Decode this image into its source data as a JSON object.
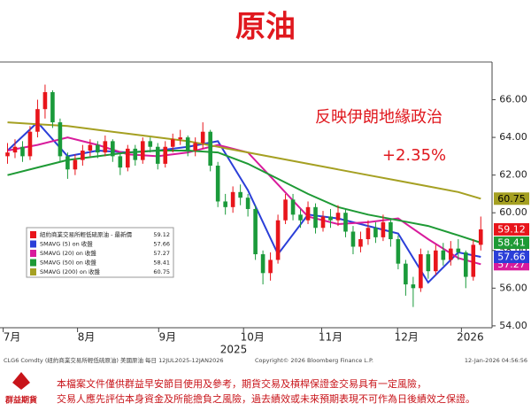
{
  "chart_data": {
    "type": "candlestick",
    "title": "原油",
    "annotation": "反映伊朗地緣政治",
    "annotation_change": "+2.35%",
    "x": [
      0,
      1,
      2,
      3,
      4,
      5,
      6,
      7,
      8,
      9,
      10,
      11,
      12,
      13,
      14,
      15,
      16,
      17,
      18,
      19,
      20,
      21,
      22,
      23,
      24,
      25,
      26,
      27,
      28,
      29,
      30,
      31,
      32,
      33,
      34,
      35,
      36,
      37,
      38,
      39,
      40,
      41,
      42,
      43,
      44,
      45,
      46,
      47,
      48,
      49,
      50,
      51,
      52,
      53,
      54,
      55,
      56,
      57,
      58,
      59,
      60,
      61,
      62,
      63
    ],
    "open": [
      63.0,
      63.2,
      63.5,
      63.0,
      64.3,
      65.5,
      66.4,
      64.8,
      63.0,
      62.3,
      62.8,
      63.3,
      63.6,
      63.2,
      63.8,
      63.0,
      62.4,
      63.4,
      62.8,
      63.8,
      63.5,
      62.6,
      63.5,
      63.9,
      64.0,
      63.3,
      63.7,
      64.3,
      62.5,
      60.6,
      60.3,
      61.1,
      60.8,
      60.2,
      57.8,
      56.8,
      57.5,
      59.6,
      60.7,
      59.9,
      59.6,
      60.3,
      59.2,
      59.8,
      59.6,
      60.0,
      59.0,
      58.2,
      58.6,
      59.2,
      58.7,
      59.5,
      58.6,
      57.3,
      56.2,
      56.0,
      57.8,
      56.9,
      58.0,
      57.5,
      58.1,
      57.9,
      56.6,
      58.3
    ],
    "high": [
      63.7,
      63.9,
      63.8,
      64.6,
      66.0,
      66.8,
      66.5,
      65.0,
      63.2,
      63.1,
      63.6,
      63.9,
      63.8,
      64.1,
      63.9,
      63.2,
      63.6,
      63.6,
      64.0,
      64.0,
      63.7,
      63.8,
      64.2,
      64.4,
      64.1,
      64.0,
      64.8,
      64.4,
      62.7,
      61.0,
      61.4,
      61.5,
      61.0,
      60.4,
      58.0,
      57.9,
      59.9,
      61.0,
      61.0,
      60.2,
      60.6,
      60.5,
      60.1,
      60.2,
      60.4,
      60.2,
      59.3,
      59.0,
      59.6,
      59.5,
      59.9,
      59.7,
      58.8,
      57.5,
      56.6,
      58.1,
      58.0,
      58.3,
      58.4,
      58.5,
      58.6,
      58.0,
      58.6,
      59.8
    ],
    "low": [
      62.6,
      62.9,
      62.7,
      62.8,
      64.0,
      65.0,
      64.5,
      62.7,
      61.8,
      62.0,
      62.5,
      63.0,
      62.9,
      63.0,
      62.7,
      62.0,
      62.2,
      62.5,
      62.6,
      63.2,
      62.3,
      62.4,
      63.2,
      63.6,
      63.0,
      63.0,
      63.4,
      62.2,
      60.3,
      59.9,
      60.0,
      60.4,
      59.8,
      57.5,
      56.2,
      56.4,
      57.3,
      59.4,
      59.6,
      59.2,
      59.4,
      58.9,
      59.0,
      59.2,
      59.3,
      58.7,
      57.8,
      57.9,
      58.3,
      58.4,
      58.5,
      58.2,
      57.0,
      55.6,
      55.0,
      55.8,
      56.5,
      56.7,
      57.2,
      57.2,
      57.5,
      56.0,
      56.4,
      58.0
    ],
    "close": [
      63.2,
      63.5,
      63.0,
      64.3,
      65.5,
      66.4,
      64.8,
      63.0,
      62.3,
      62.8,
      63.3,
      63.6,
      63.2,
      63.8,
      63.0,
      62.4,
      63.4,
      62.8,
      63.8,
      63.5,
      62.6,
      63.5,
      63.9,
      64.0,
      63.3,
      63.7,
      64.3,
      62.5,
      60.6,
      60.3,
      61.1,
      60.8,
      60.2,
      57.8,
      56.8,
      57.5,
      59.6,
      60.7,
      59.9,
      59.6,
      60.3,
      59.2,
      59.8,
      59.6,
      60.0,
      59.0,
      58.2,
      58.6,
      59.2,
      58.7,
      59.5,
      58.6,
      57.3,
      56.2,
      56.0,
      57.8,
      56.9,
      58.0,
      57.5,
      58.1,
      57.9,
      56.6,
      58.3,
      59.12
    ],
    "up_color": "#e8151b",
    "down_color": "#1a9a3a",
    "series": [
      {
        "name": "紐約商業交易所輕低硫原油 - 最新價",
        "last_label": "59.12",
        "color": "#e8151b",
        "last": 59.12
      },
      {
        "name": "SMAVG (5)  on 收盤",
        "last_label": "57.66",
        "color": "#2b3fd8",
        "last": 57.66,
        "x": [
          0,
          4,
          8,
          12,
          16,
          20,
          24,
          28,
          32,
          36,
          40,
          44,
          48,
          52,
          56,
          60,
          63
        ],
        "values": [
          63.3,
          64.8,
          63.0,
          63.3,
          63.2,
          63.3,
          63.5,
          63.8,
          61.2,
          57.8,
          59.9,
          59.7,
          59.3,
          58.9,
          56.3,
          57.9,
          57.66
        ]
      },
      {
        "name": "SMAVG (20)  on 收盤",
        "last_label": "57.27",
        "color": "#d81b9c",
        "last": 57.27,
        "x": [
          0,
          4,
          8,
          12,
          16,
          20,
          24,
          28,
          32,
          36,
          40,
          44,
          48,
          52,
          56,
          60,
          63
        ],
        "values": [
          63.3,
          63.6,
          64.0,
          63.6,
          63.1,
          63.0,
          63.2,
          63.6,
          63.2,
          61.5,
          59.8,
          59.4,
          59.5,
          59.7,
          58.6,
          57.6,
          57.27
        ]
      },
      {
        "name": "SMAVG (50)  on 收盤",
        "last_label": "58.41",
        "color": "#1e9a35",
        "last": 58.41,
        "x": [
          0,
          4,
          8,
          12,
          16,
          20,
          24,
          28,
          32,
          36,
          40,
          44,
          48,
          52,
          56,
          60,
          63
        ],
        "values": [
          62.0,
          62.4,
          62.8,
          63.0,
          63.2,
          63.3,
          63.3,
          63.2,
          62.6,
          61.8,
          61.0,
          60.3,
          59.9,
          59.6,
          59.3,
          58.8,
          58.41
        ]
      },
      {
        "name": "SMAVG (200)  on 收盤",
        "last_label": "60.75",
        "color": "#a5a022",
        "last": 60.75,
        "x": [
          0,
          4,
          8,
          12,
          16,
          20,
          24,
          28,
          32,
          36,
          40,
          44,
          48,
          52,
          56,
          60,
          63
        ],
        "values": [
          64.8,
          64.7,
          64.6,
          64.4,
          64.2,
          64.0,
          63.8,
          63.5,
          63.2,
          62.9,
          62.6,
          62.3,
          62.0,
          61.7,
          61.4,
          61.1,
          60.75
        ]
      }
    ],
    "xlim": [
      -1,
      64.5
    ],
    "ylim": [
      53.9,
      68
    ],
    "yticks": [
      {
        "value": 54,
        "label": "54.00"
      },
      {
        "value": 56,
        "label": "56.00"
      },
      {
        "value": 58,
        "label": "58.00"
      },
      {
        "value": 60,
        "label": "60.00"
      },
      {
        "value": 62,
        "label": "62.00"
      },
      {
        "value": 64,
        "label": "64.00"
      },
      {
        "value": 66,
        "label": "66.00"
      }
    ],
    "xticks": [
      {
        "value": 0.6,
        "label": "7月"
      },
      {
        "value": 10.5,
        "label": "8月"
      },
      {
        "value": 21.3,
        "label": "9月"
      },
      {
        "value": 32.6,
        "label": "10月"
      },
      {
        "value": 43,
        "label": "11月"
      },
      {
        "value": 53.1,
        "label": "12月"
      },
      {
        "value": 61.6,
        "label": "2026"
      }
    ],
    "xyear": {
      "value": 30.1,
      "label": "2025"
    },
    "footer_left": "CLG6 Comdty (紐約商業交易所輕低硫原油) 美國原油 每日 12JUL2025-12JAN2026",
    "footer_center": "Copyright© 2026 Bloomberg Finance L.P.",
    "footer_right": "12-Jan-2026 04:56:56",
    "disclaimer": [
      "本檔案文件僅供群益早安節目使用及參考，期貨交易及槓桿保證金交易具有一定風險，",
      "交易人應先評估本身資金及所能擔負之風險，過去績效或未來預期表現不可作為日後績效之保證。"
    ],
    "logo": "群益期貨"
  }
}
